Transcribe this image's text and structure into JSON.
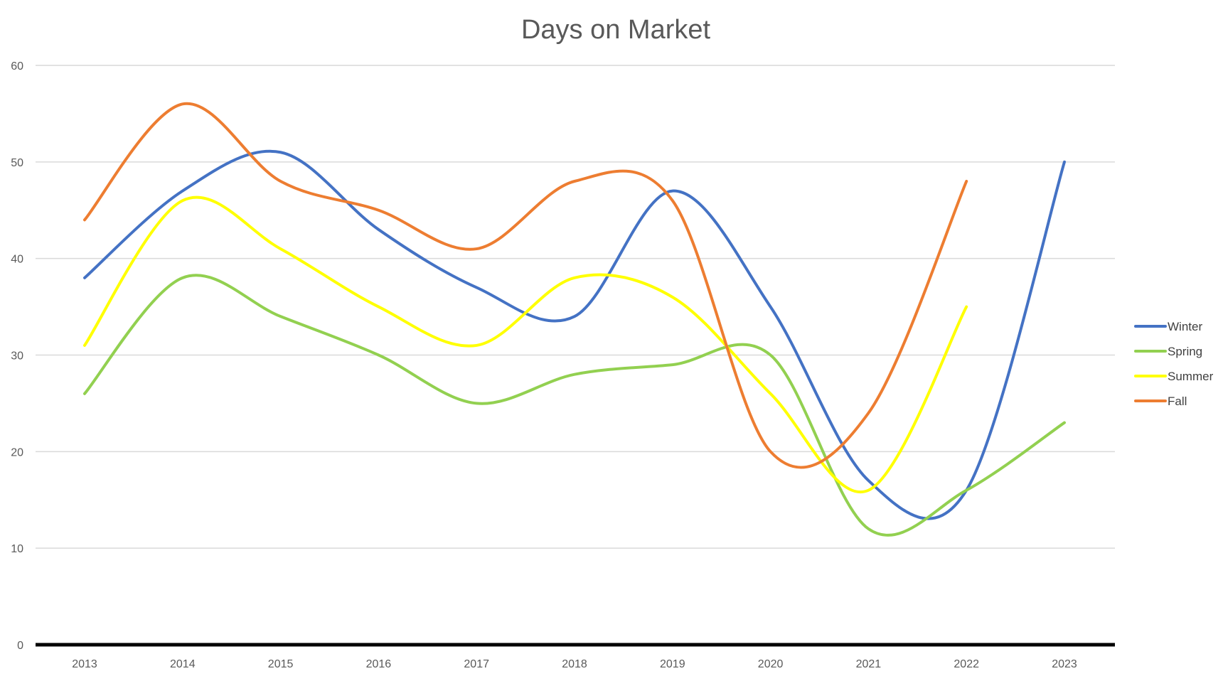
{
  "chart_data": {
    "type": "line",
    "title": "Days on Market",
    "xlabel": "",
    "ylabel": "",
    "categories": [
      "2013",
      "2014",
      "2015",
      "2016",
      "2017",
      "2018",
      "2019",
      "2020",
      "2021",
      "2022",
      "2023"
    ],
    "ylim": [
      0,
      60
    ],
    "yticks": [
      "0",
      "10",
      "20",
      "30",
      "40",
      "50",
      "60"
    ],
    "grid": true,
    "smooth": true,
    "legend": "right",
    "series": [
      {
        "name": "Winter",
        "color": "#4472C4",
        "values": [
          38,
          47,
          51,
          43,
          37,
          34,
          47,
          35,
          17,
          16,
          50
        ]
      },
      {
        "name": "Spring",
        "color": "#92D050",
        "values": [
          26,
          38,
          34,
          30,
          25,
          28,
          29,
          30,
          12,
          16,
          23
        ]
      },
      {
        "name": "Summer",
        "color": "#FFFF00",
        "values": [
          31,
          46,
          41,
          35,
          31,
          38,
          36,
          26,
          16,
          35,
          null
        ]
      },
      {
        "name": "Fall",
        "color": "#ED7D31",
        "values": [
          44,
          56,
          48,
          45,
          41,
          48,
          46,
          20,
          24,
          48,
          null
        ]
      }
    ]
  }
}
